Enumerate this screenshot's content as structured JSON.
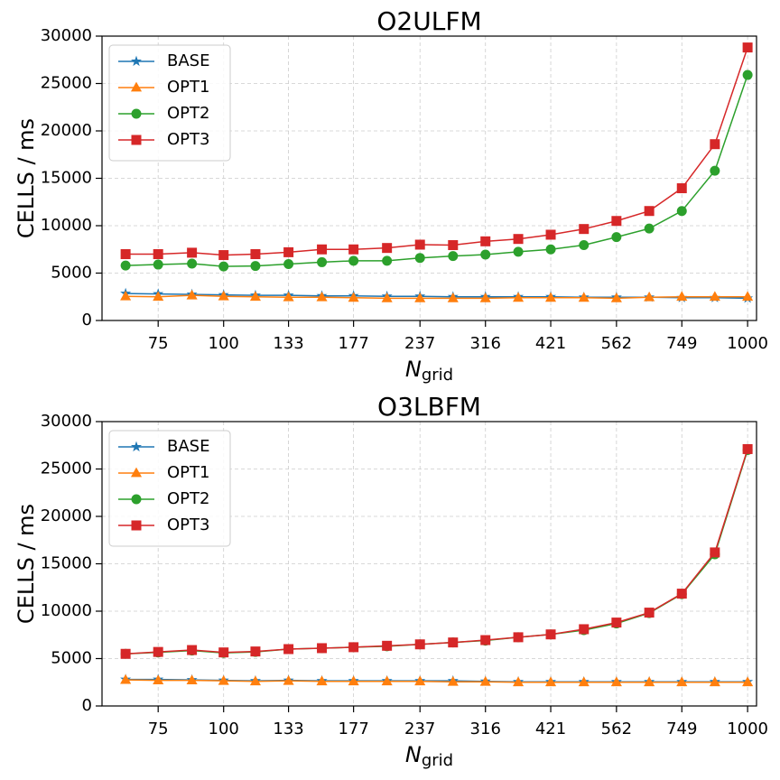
{
  "chart_data": [
    {
      "type": "line",
      "title": "O2ULFM",
      "ylabel": "CELLS / ms",
      "xlabel": "N",
      "xlabel_subscript": "grid",
      "xscale": "log",
      "grid": true,
      "legend": "upper left",
      "x": [
        65,
        75,
        87,
        100,
        115,
        133,
        154,
        177,
        205,
        237,
        274,
        316,
        365,
        421,
        487,
        562,
        649,
        749,
        866,
        1000
      ],
      "xlim": [
        58.6,
        1040
      ],
      "xticks": [
        75,
        100,
        133,
        177,
        237,
        316,
        421,
        562,
        749,
        1000
      ],
      "ylim": [
        0,
        30000
      ],
      "yticks": [
        0,
        5000,
        10000,
        15000,
        20000,
        25000,
        30000
      ],
      "series": [
        {
          "name": "BASE",
          "color": "#1f77b4",
          "marker": "star",
          "values": [
            2850,
            2800,
            2750,
            2700,
            2650,
            2650,
            2600,
            2600,
            2550,
            2550,
            2500,
            2500,
            2500,
            2500,
            2450,
            2450,
            2450,
            2400,
            2400,
            2350
          ]
        },
        {
          "name": "OPT1",
          "color": "#ff7f0e",
          "marker": "triangle",
          "values": [
            2550,
            2500,
            2650,
            2550,
            2500,
            2450,
            2450,
            2400,
            2350,
            2350,
            2350,
            2350,
            2400,
            2400,
            2400,
            2350,
            2450,
            2500,
            2500,
            2500
          ]
        },
        {
          "name": "OPT2",
          "color": "#2ca02c",
          "marker": "circle",
          "values": [
            5800,
            5900,
            6000,
            5700,
            5750,
            5950,
            6150,
            6300,
            6300,
            6600,
            6800,
            6950,
            7250,
            7500,
            7950,
            8800,
            9700,
            11550,
            15800,
            25900
          ]
        },
        {
          "name": "OPT3",
          "color": "#d62728",
          "marker": "square",
          "values": [
            7000,
            7000,
            7150,
            6900,
            7000,
            7200,
            7500,
            7500,
            7650,
            8000,
            7950,
            8350,
            8600,
            9050,
            9650,
            10500,
            11550,
            13950,
            18600,
            28800
          ]
        }
      ]
    },
    {
      "type": "line",
      "title": "O3LBFM",
      "ylabel": "CELLS / ms",
      "xlabel": "N",
      "xlabel_subscript": "grid",
      "xscale": "log",
      "grid": true,
      "legend": "upper left",
      "x": [
        65,
        75,
        87,
        100,
        115,
        133,
        154,
        177,
        205,
        237,
        274,
        316,
        365,
        421,
        487,
        562,
        649,
        749,
        866,
        1000
      ],
      "xlim": [
        58.6,
        1040
      ],
      "xticks": [
        75,
        100,
        133,
        177,
        237,
        316,
        421,
        562,
        749,
        1000
      ],
      "ylim": [
        0,
        30000
      ],
      "yticks": [
        0,
        5000,
        10000,
        15000,
        20000,
        25000,
        30000
      ],
      "series": [
        {
          "name": "BASE",
          "color": "#1f77b4",
          "marker": "star",
          "values": [
            2800,
            2800,
            2750,
            2700,
            2650,
            2700,
            2650,
            2650,
            2650,
            2650,
            2650,
            2600,
            2550,
            2550,
            2550,
            2550,
            2550,
            2550,
            2550,
            2550
          ]
        },
        {
          "name": "OPT1",
          "color": "#ff7f0e",
          "marker": "triangle",
          "values": [
            2750,
            2700,
            2700,
            2650,
            2600,
            2650,
            2600,
            2600,
            2600,
            2600,
            2550,
            2550,
            2500,
            2500,
            2500,
            2500,
            2500,
            2500,
            2500,
            2500
          ]
        },
        {
          "name": "OPT2",
          "color": "#2ca02c",
          "marker": "circle",
          "values": [
            5500,
            5650,
            5850,
            5600,
            5700,
            6000,
            6100,
            6200,
            6300,
            6500,
            6700,
            6900,
            7250,
            7550,
            8000,
            8700,
            9800,
            11800,
            16000,
            27000
          ]
        },
        {
          "name": "OPT3",
          "color": "#d62728",
          "marker": "square",
          "values": [
            5500,
            5700,
            5900,
            5650,
            5750,
            6000,
            6100,
            6200,
            6350,
            6500,
            6700,
            6950,
            7250,
            7550,
            8100,
            8800,
            9850,
            11850,
            16200,
            27100
          ]
        }
      ]
    }
  ]
}
